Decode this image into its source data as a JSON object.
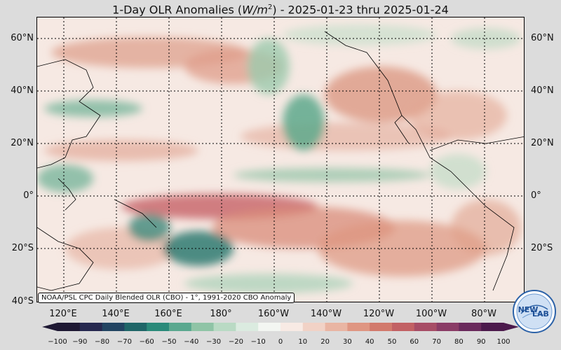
{
  "title": {
    "prefix": "1-Day OLR Anomalies (",
    "unit_w": "W",
    "unit_m": "/m",
    "unit_exp": "2",
    "suffix": ") - 2025-01-23 thru 2025-01-24"
  },
  "map": {
    "lat_labels": [
      "60°N",
      "40°N",
      "20°N",
      "0°",
      "20°S",
      "40°S"
    ],
    "lon_labels": [
      "120°E",
      "140°E",
      "160°E",
      "180°",
      "160°W",
      "140°W",
      "120°W",
      "100°W",
      "80°W"
    ],
    "source_text": "NOAA/PSL CPC Daily Blended OLR (CBO) - 1°, 1991-2020 CBO Anomaly",
    "ocean_color": "#f6e9e3"
  },
  "colorbar": {
    "ticks": [
      "−100",
      "−90",
      "−80",
      "−70",
      "−60",
      "−50",
      "−40",
      "−30",
      "−20",
      "−10",
      "0",
      "10",
      "20",
      "30",
      "40",
      "50",
      "60",
      "70",
      "80",
      "90",
      "100"
    ],
    "colors": [
      "#1e1833",
      "#26284f",
      "#224462",
      "#1f6668",
      "#2a8a7a",
      "#5aa88f",
      "#8fc4a6",
      "#b9dac4",
      "#dbebe0",
      "#f3f6f2",
      "#f8eae4",
      "#f1d2c6",
      "#e9b5a3",
      "#df9682",
      "#d27a6c",
      "#c26164",
      "#a74d66",
      "#8a3c66",
      "#6a2a5c",
      "#4c1a4c"
    ]
  },
  "logo": {
    "text_a": "NEW",
    "text_b": "LAB"
  }
}
